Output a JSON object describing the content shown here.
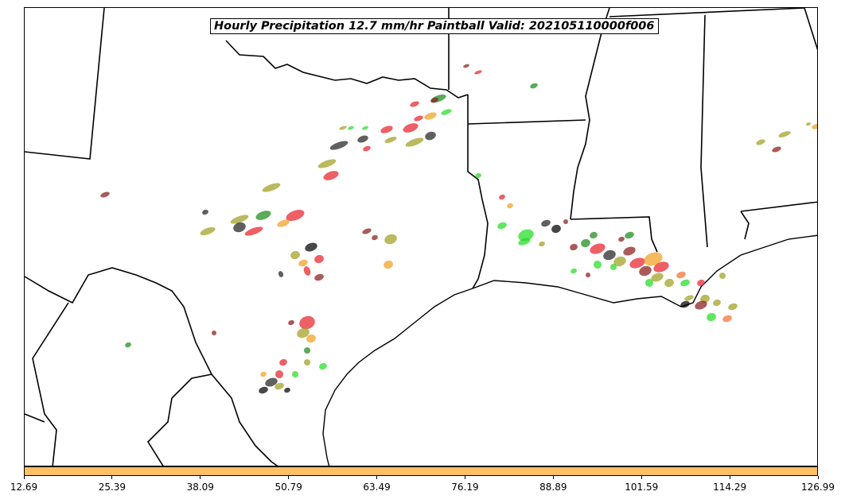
{
  "title": "Hourly Precipitation 12.7 mm/hr Paintball Valid: 202105110000f006",
  "colorbar": {
    "color": "#ffc064",
    "ticks": [
      "12.69",
      "25.39",
      "38.09",
      "50.79",
      "63.49",
      "76.19",
      "88.89",
      "101.59",
      "114.29",
      "126.99"
    ]
  },
  "member_colors": [
    "#1a8a1a",
    "#e8212b",
    "#22dd22",
    "#f0a020",
    "#8b1a1a",
    "#a0a020",
    "#222222",
    "#f07030"
  ]
}
